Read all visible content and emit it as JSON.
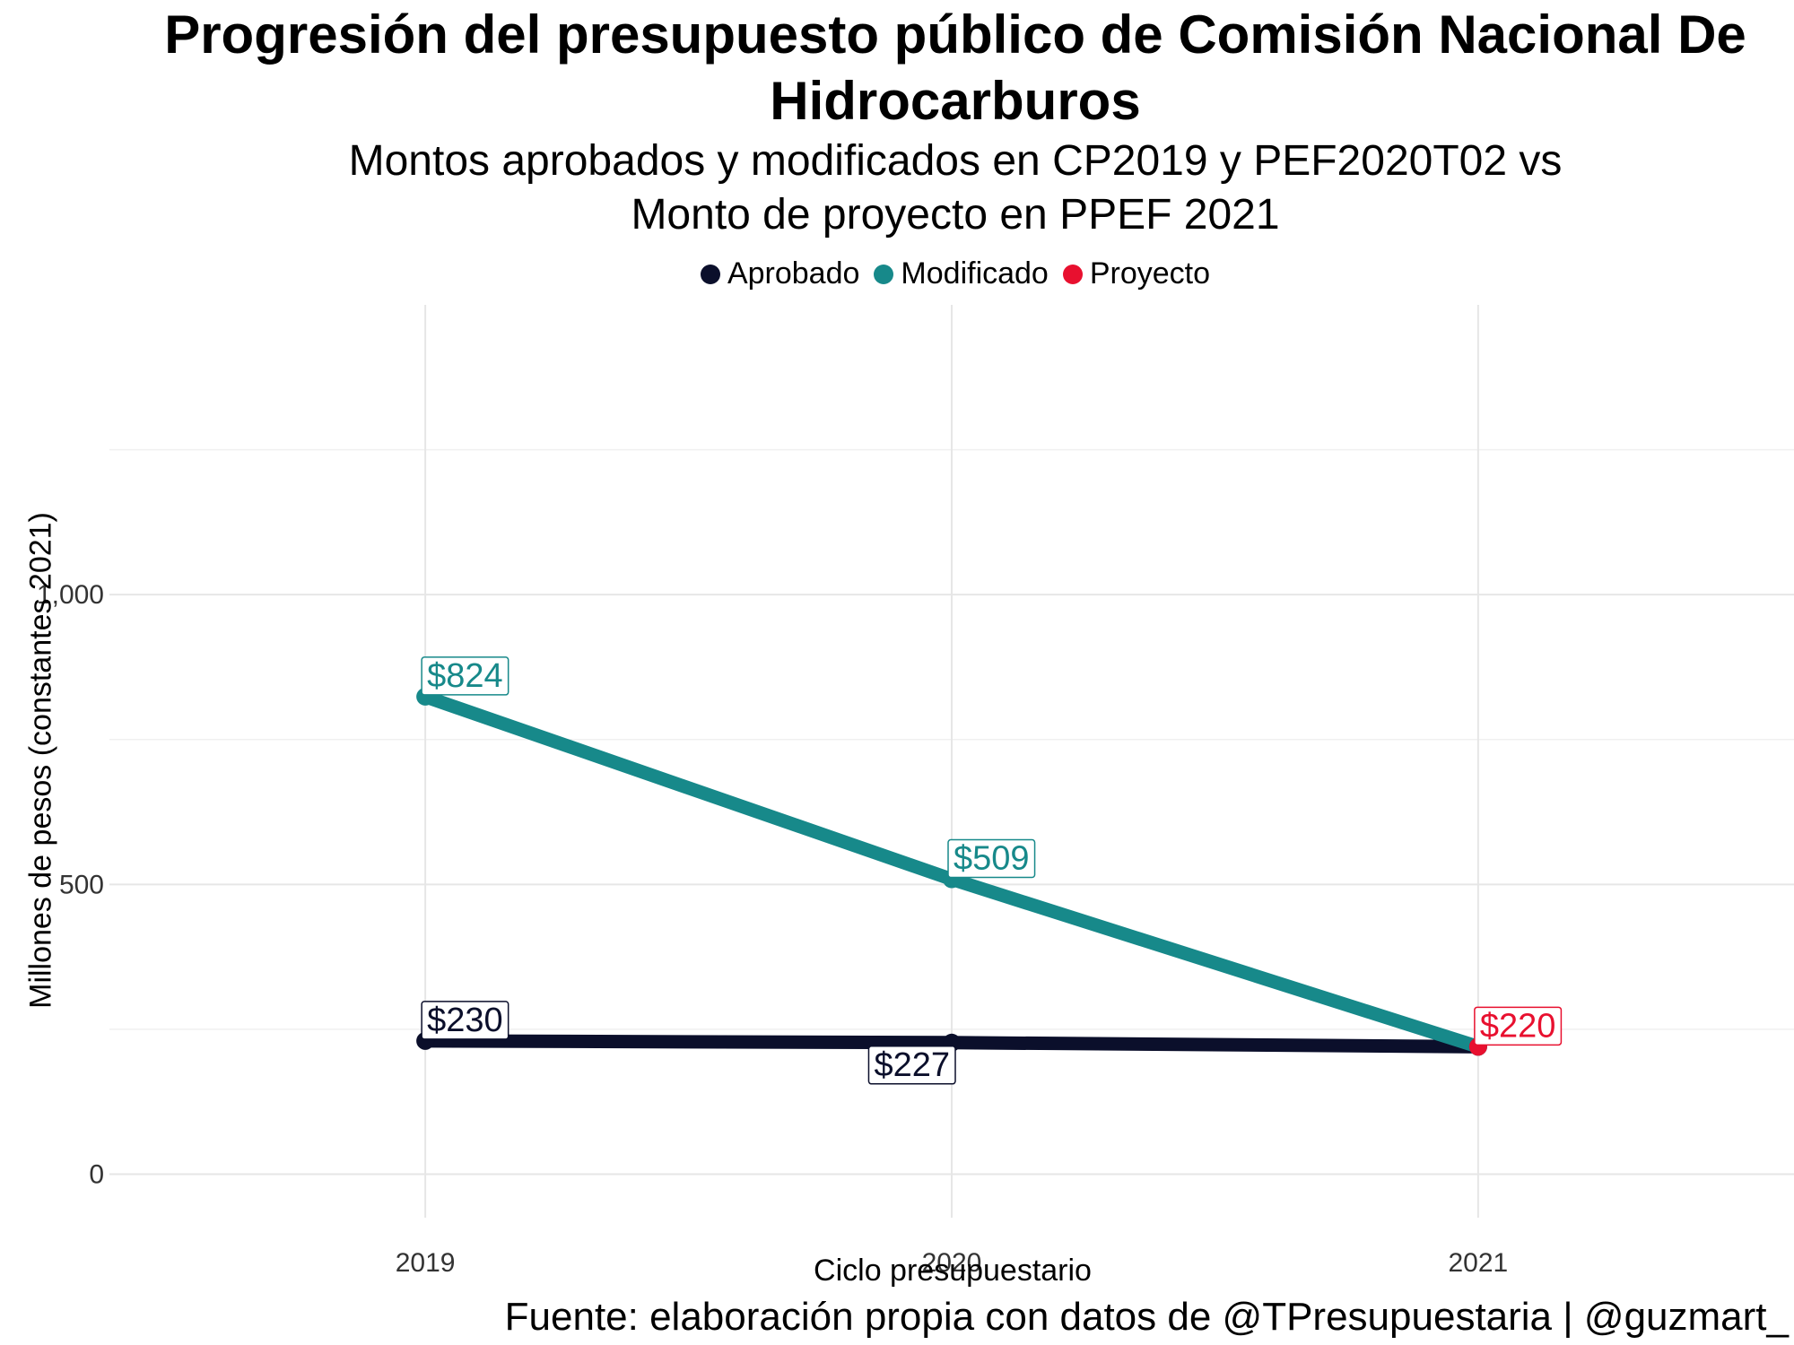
{
  "chart_data": {
    "type": "line",
    "title": "Progresión del presupuesto público de Comisión Nacional De Hidrocarburos",
    "subtitle_lines": [
      "Montos aprobados y modificados en CP2019 y PEF2020T02 vs",
      "Monto de proyecto en PPEF 2021"
    ],
    "xlabel": "Ciclo presupuestario",
    "ylabel": "Millones de pesos (constantes 2021)",
    "caption": "Fuente: elaboración propia con datos de @TPresupuestaria | @guzmart_",
    "x": [
      2019,
      2020,
      2021
    ],
    "x_tick_labels": [
      "2019",
      "2020",
      "2021"
    ],
    "y_ticks": [
      0,
      500,
      1000
    ],
    "y_tick_labels": [
      "0",
      "500",
      "1,000"
    ],
    "ylim": [
      -75,
      1500
    ],
    "xlim": [
      2018.4,
      2021.6
    ],
    "grid": true,
    "legend_position": "top",
    "series": [
      {
        "name": "Aprobado",
        "color": "#0b0f2b",
        "points": [
          {
            "x": 2019,
            "y": 230,
            "label": "$230",
            "label_pos": "above"
          },
          {
            "x": 2020,
            "y": 227,
            "label": "$227",
            "label_pos": "below"
          },
          {
            "x": 2021,
            "y": 220,
            "label": "",
            "label_pos": "none"
          }
        ]
      },
      {
        "name": "Modificado",
        "color": "#17898a",
        "points": [
          {
            "x": 2019,
            "y": 824,
            "label": "$824",
            "label_pos": "above"
          },
          {
            "x": 2020,
            "y": 509,
            "label": "$509",
            "label_pos": "above"
          },
          {
            "x": 2021,
            "y": 220,
            "label": "",
            "label_pos": "none"
          }
        ]
      },
      {
        "name": "Proyecto",
        "color": "#e8102f",
        "points": [
          {
            "x": 2021,
            "y": 220,
            "label": "$220",
            "label_pos": "above"
          }
        ]
      }
    ]
  }
}
